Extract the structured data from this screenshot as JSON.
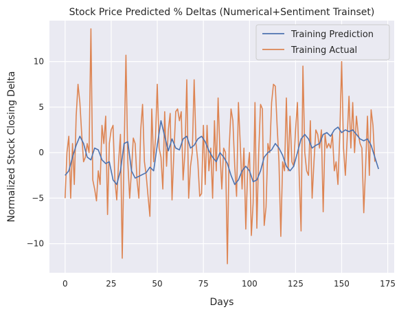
{
  "chart_data": {
    "type": "line",
    "title": "Stock Price Predicted % Deltas (Numerical+Sentiment Trainset)",
    "xlabel": "Days",
    "ylabel": "Normalized Stock Closing Delta",
    "xlim": [
      -8.5,
      178.5
    ],
    "ylim": [
      -13.2,
      14.5
    ],
    "xticks": [
      0,
      25,
      50,
      75,
      100,
      125,
      150,
      175
    ],
    "yticks": [
      -10,
      -5,
      0,
      5,
      10
    ],
    "grid": true,
    "legend_position": "top-right",
    "background": "#eaeaf2",
    "series": [
      {
        "name": "Training Prediction",
        "color": "#4c72b0",
        "points": [
          [
            0,
            -2.5
          ],
          [
            2,
            -2.0
          ],
          [
            4,
            -0.5
          ],
          [
            6,
            0.8
          ],
          [
            8,
            1.8
          ],
          [
            10,
            1.0
          ],
          [
            12,
            -0.5
          ],
          [
            14,
            -0.8
          ],
          [
            16,
            0.5
          ],
          [
            18,
            0.3
          ],
          [
            20,
            -0.8
          ],
          [
            22,
            -1.2
          ],
          [
            24,
            -1.0
          ],
          [
            26,
            -3.0
          ],
          [
            28,
            -3.5
          ],
          [
            30,
            -2.0
          ],
          [
            32,
            1.0
          ],
          [
            34,
            1.2
          ],
          [
            36,
            -2.0
          ],
          [
            38,
            -2.8
          ],
          [
            40,
            -2.6
          ],
          [
            44,
            -2.2
          ],
          [
            46,
            -1.6
          ],
          [
            48,
            -2.0
          ],
          [
            50,
            0.8
          ],
          [
            52,
            3.5
          ],
          [
            54,
            1.8
          ],
          [
            56,
            0.2
          ],
          [
            58,
            1.5
          ],
          [
            60,
            0.5
          ],
          [
            62,
            0.3
          ],
          [
            64,
            1.5
          ],
          [
            66,
            1.8
          ],
          [
            68,
            0.5
          ],
          [
            70,
            0.8
          ],
          [
            72,
            1.5
          ],
          [
            74,
            1.8
          ],
          [
            76,
            1.2
          ],
          [
            78,
            0.2
          ],
          [
            80,
            -0.5
          ],
          [
            82,
            -1.0
          ],
          [
            84,
            0.0
          ],
          [
            86,
            -0.5
          ],
          [
            88,
            -1.2
          ],
          [
            90,
            -2.5
          ],
          [
            92,
            -3.5
          ],
          [
            94,
            -3.0
          ],
          [
            96,
            -2.0
          ],
          [
            98,
            -1.5
          ],
          [
            100,
            -2.0
          ],
          [
            102,
            -3.2
          ],
          [
            104,
            -3.0
          ],
          [
            106,
            -2.0
          ],
          [
            108,
            -0.5
          ],
          [
            110,
            0.0
          ],
          [
            112,
            0.3
          ],
          [
            114,
            1.0
          ],
          [
            116,
            0.5
          ],
          [
            118,
            -0.3
          ],
          [
            120,
            -1.5
          ],
          [
            122,
            -2.0
          ],
          [
            124,
            -1.5
          ],
          [
            126,
            0.0
          ],
          [
            128,
            1.5
          ],
          [
            130,
            2.0
          ],
          [
            132,
            1.5
          ],
          [
            134,
            0.5
          ],
          [
            136,
            0.8
          ],
          [
            138,
            1.0
          ],
          [
            140,
            2.0
          ],
          [
            142,
            2.2
          ],
          [
            144,
            1.8
          ],
          [
            146,
            2.5
          ],
          [
            148,
            2.8
          ],
          [
            150,
            2.2
          ],
          [
            152,
            2.5
          ],
          [
            154,
            2.3
          ],
          [
            156,
            2.5
          ],
          [
            158,
            2.0
          ],
          [
            160,
            1.5
          ],
          [
            162,
            1.3
          ],
          [
            164,
            1.5
          ],
          [
            166,
            0.8
          ],
          [
            168,
            -0.5
          ],
          [
            170,
            -1.8
          ]
        ]
      },
      {
        "name": "Training Actual",
        "color": "#dd8452",
        "points": [
          [
            0,
            -5.0
          ],
          [
            1,
            0.0
          ],
          [
            2,
            1.8
          ],
          [
            3,
            -5.0
          ],
          [
            4,
            1.0
          ],
          [
            5,
            -3.5
          ],
          [
            6,
            4.0
          ],
          [
            7,
            7.5
          ],
          [
            8,
            5.5
          ],
          [
            9,
            2.0
          ],
          [
            10,
            -1.0
          ],
          [
            11,
            -0.5
          ],
          [
            12,
            1.0
          ],
          [
            13,
            0.0
          ],
          [
            14,
            13.6
          ],
          [
            15,
            -3.0
          ],
          [
            16,
            -4.0
          ],
          [
            17,
            -5.3
          ],
          [
            18,
            -2.0
          ],
          [
            19,
            -3.5
          ],
          [
            20,
            3.0
          ],
          [
            21,
            1.0
          ],
          [
            22,
            4.0
          ],
          [
            23,
            -6.8
          ],
          [
            24,
            1.0
          ],
          [
            25,
            2.5
          ],
          [
            26,
            3.0
          ],
          [
            27,
            -3.0
          ],
          [
            28,
            -5.2
          ],
          [
            29,
            -1.0
          ],
          [
            30,
            2.0
          ],
          [
            31,
            -11.6
          ],
          [
            32,
            0.0
          ],
          [
            33,
            10.7
          ],
          [
            34,
            -1.0
          ],
          [
            35,
            -5.0
          ],
          [
            36,
            -2.0
          ],
          [
            37,
            1.6
          ],
          [
            38,
            1.0
          ],
          [
            39,
            -3.0
          ],
          [
            40,
            -5.0
          ],
          [
            41,
            2.5
          ],
          [
            42,
            5.3
          ],
          [
            43,
            -1.0
          ],
          [
            44,
            -2.5
          ],
          [
            45,
            -4.8
          ],
          [
            46,
            -7.0
          ],
          [
            47,
            4.8
          ],
          [
            48,
            -1.0
          ],
          [
            49,
            1.5
          ],
          [
            50,
            7.5
          ],
          [
            51,
            0.5
          ],
          [
            52,
            -0.5
          ],
          [
            53,
            -4.0
          ],
          [
            54,
            4.5
          ],
          [
            55,
            -1.5
          ],
          [
            56,
            2.5
          ],
          [
            57,
            4.3
          ],
          [
            58,
            -5.2
          ],
          [
            59,
            0.0
          ],
          [
            60,
            4.5
          ],
          [
            61,
            4.8
          ],
          [
            62,
            3.5
          ],
          [
            63,
            4.5
          ],
          [
            64,
            -3.0
          ],
          [
            65,
            0.0
          ],
          [
            66,
            8.0
          ],
          [
            67,
            -5.0
          ],
          [
            68,
            -1.5
          ],
          [
            69,
            0.0
          ],
          [
            70,
            8.0
          ],
          [
            71,
            1.0
          ],
          [
            72,
            -1.0
          ],
          [
            73,
            -4.8
          ],
          [
            74,
            -4.5
          ],
          [
            75,
            3.0
          ],
          [
            76,
            -3.5
          ],
          [
            77,
            3.0
          ],
          [
            78,
            -2.0
          ],
          [
            79,
            0.5
          ],
          [
            80,
            -5.0
          ],
          [
            81,
            3.5
          ],
          [
            82,
            -2.0
          ],
          [
            83,
            6.0
          ],
          [
            84,
            0.0
          ],
          [
            85,
            -4.0
          ],
          [
            86,
            0.5
          ],
          [
            87,
            0.0
          ],
          [
            88,
            -12.2
          ],
          [
            89,
            0.5
          ],
          [
            90,
            4.8
          ],
          [
            91,
            3.5
          ],
          [
            92,
            -1.5
          ],
          [
            93,
            -4.8
          ],
          [
            94,
            5.5
          ],
          [
            95,
            1.0
          ],
          [
            96,
            -4.0
          ],
          [
            97,
            0.5
          ],
          [
            98,
            -8.4
          ],
          [
            99,
            -2.0
          ],
          [
            100,
            0.0
          ],
          [
            101,
            -9.1
          ],
          [
            102,
            -5.5
          ],
          [
            103,
            5.5
          ],
          [
            104,
            -8.3
          ],
          [
            105,
            0.0
          ],
          [
            106,
            5.3
          ],
          [
            107,
            4.8
          ],
          [
            108,
            -8.0
          ],
          [
            109,
            -6.0
          ],
          [
            110,
            1.0
          ],
          [
            111,
            0.0
          ],
          [
            112,
            5.5
          ],
          [
            113,
            7.5
          ],
          [
            114,
            7.3
          ],
          [
            115,
            3.0
          ],
          [
            116,
            -1.0
          ],
          [
            117,
            -9.2
          ],
          [
            118,
            -1.0
          ],
          [
            119,
            -2.0
          ],
          [
            120,
            6.0
          ],
          [
            121,
            -2.0
          ],
          [
            122,
            4.0
          ],
          [
            123,
            -1.0
          ],
          [
            124,
            -1.5
          ],
          [
            125,
            2.5
          ],
          [
            126,
            5.5
          ],
          [
            127,
            -2.5
          ],
          [
            128,
            -8.6
          ],
          [
            129,
            9.5
          ],
          [
            130,
            0.0
          ],
          [
            131,
            -2.0
          ],
          [
            132,
            -2.5
          ],
          [
            133,
            3.5
          ],
          [
            134,
            -5.0
          ],
          [
            135,
            -1.0
          ],
          [
            136,
            2.5
          ],
          [
            137,
            2.0
          ],
          [
            138,
            0.5
          ],
          [
            139,
            2.5
          ],
          [
            140,
            -6.5
          ],
          [
            141,
            2.0
          ],
          [
            142,
            0.5
          ],
          [
            143,
            1.0
          ],
          [
            144,
            0.5
          ],
          [
            145,
            2.0
          ],
          [
            146,
            -2.0
          ],
          [
            147,
            -1.0
          ],
          [
            148,
            -3.5
          ],
          [
            149,
            2.0
          ],
          [
            150,
            10.0
          ],
          [
            151,
            0.5
          ],
          [
            152,
            -2.5
          ],
          [
            153,
            1.5
          ],
          [
            154,
            6.2
          ],
          [
            155,
            0.5
          ],
          [
            156,
            5.5
          ],
          [
            157,
            0.0
          ],
          [
            158,
            4.0
          ],
          [
            159,
            2.0
          ],
          [
            160,
            1.0
          ],
          [
            161,
            0.5
          ],
          [
            162,
            -6.6
          ],
          [
            163,
            -1.5
          ],
          [
            164,
            4.0
          ],
          [
            165,
            -2.5
          ],
          [
            166,
            4.7
          ],
          [
            167,
            3.0
          ],
          [
            168,
            -1.0
          ]
        ]
      }
    ]
  }
}
